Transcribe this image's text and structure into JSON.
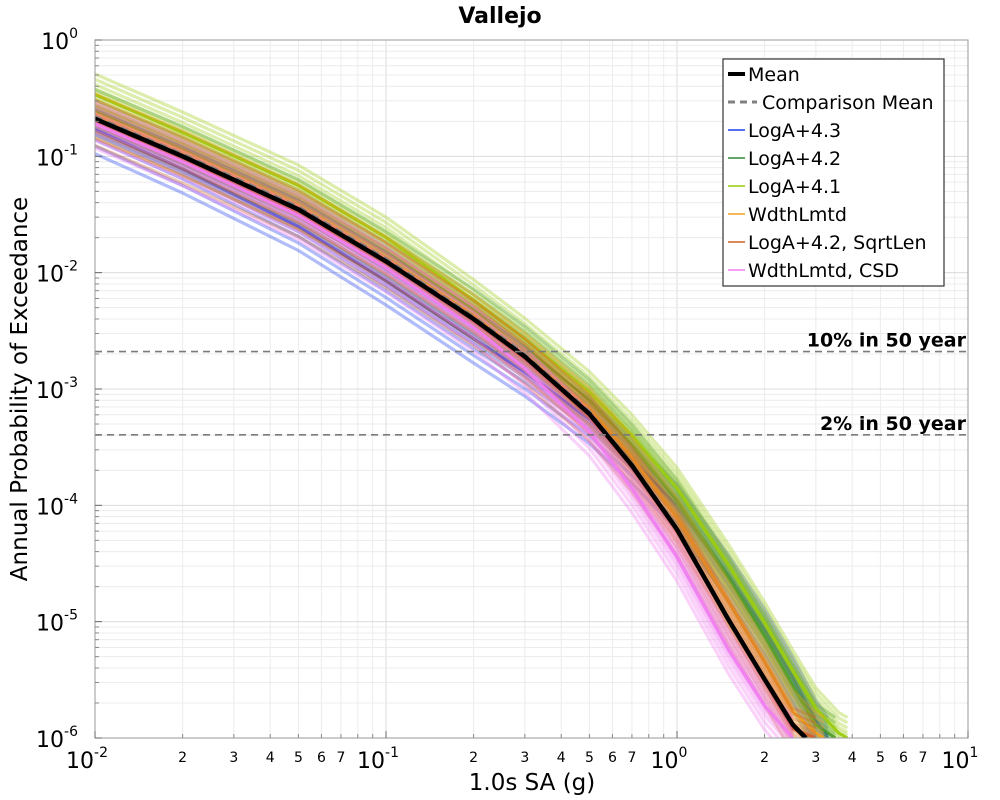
{
  "chart_data": {
    "type": "line",
    "title": "Vallejo",
    "xlabel": "1.0s SA (g)",
    "ylabel": "Annual Probability of Exceedance",
    "xscale": "log",
    "yscale": "log",
    "xlim": [
      0.01,
      10
    ],
    "ylim": [
      1e-06,
      1
    ],
    "grid": true,
    "legend_position": "top-right",
    "x_major_tick_labels": [
      {
        "base": "10",
        "exp": "-2"
      },
      {
        "base": "10",
        "exp": "-1"
      },
      {
        "base": "10",
        "exp": "0"
      },
      {
        "base": "10",
        "exp": "1"
      }
    ],
    "x_minor_tick_labels": [
      "2",
      "3",
      "4",
      "5",
      "6",
      "7"
    ],
    "y_tick_labels": [
      {
        "base": "10",
        "exp": "0"
      },
      {
        "base": "10",
        "exp": "-1"
      },
      {
        "base": "10",
        "exp": "-2"
      },
      {
        "base": "10",
        "exp": "-3"
      },
      {
        "base": "10",
        "exp": "-4"
      },
      {
        "base": "10",
        "exp": "-5"
      },
      {
        "base": "10",
        "exp": "-6"
      }
    ],
    "reference_lines": [
      {
        "label": "10% in 50 year",
        "y": 0.0021
      },
      {
        "label": "2% in 50 year",
        "y": 0.000404
      }
    ],
    "series": [
      {
        "name": "Mean",
        "color": "#000000",
        "style": "solid-thick",
        "x": [
          0.01,
          0.02,
          0.05,
          0.1,
          0.2,
          0.3,
          0.5,
          0.7,
          1.0,
          1.5,
          2.0,
          2.5,
          2.77
        ],
        "y": [
          0.21,
          0.1,
          0.035,
          0.0125,
          0.004,
          0.0019,
          0.00061,
          0.00022,
          6.2e-05,
          1.05e-05,
          3.2e-06,
          1.3e-06,
          1e-06
        ]
      },
      {
        "name": "Comparison Mean",
        "color": "#808080",
        "style": "dashed",
        "x": [
          0.01,
          0.02,
          0.05,
          0.1,
          0.2,
          0.3,
          0.5,
          0.7,
          1.0,
          1.5,
          2.0,
          2.5,
          2.8
        ],
        "y": [
          0.22,
          0.105,
          0.037,
          0.0132,
          0.0042,
          0.002,
          0.00064,
          0.00023,
          6.5e-05,
          1.1e-05,
          3.3e-06,
          1.3e-06,
          1e-06
        ]
      },
      {
        "name": "LogA+4.3",
        "color": "#1f3ff0",
        "style": "band",
        "x": [
          0.01,
          0.02,
          0.05,
          0.1,
          0.2,
          0.3,
          0.5,
          0.7,
          1.0,
          1.5,
          2.0,
          2.5,
          3.0,
          3.3
        ],
        "y": [
          0.17,
          0.078,
          0.025,
          0.0085,
          0.0027,
          0.0014,
          0.00055,
          0.00025,
          0.0001,
          2.5e-05,
          8.5e-06,
          3.3e-06,
          1.4e-06,
          1e-06
        ]
      },
      {
        "name": "LogA+4.2",
        "color": "#2e8b3a",
        "style": "band",
        "x": [
          0.01,
          0.02,
          0.05,
          0.1,
          0.2,
          0.3,
          0.5,
          0.7,
          1.0,
          1.5,
          2.0,
          2.5,
          3.0,
          3.5
        ],
        "y": [
          0.25,
          0.12,
          0.042,
          0.015,
          0.0048,
          0.0023,
          0.0008,
          0.00033,
          0.00011,
          2.4e-05,
          7.5e-06,
          2.8e-06,
          1.3e-06,
          1e-06
        ]
      },
      {
        "name": "LogA+4.1",
        "color": "#9ccc10",
        "style": "band",
        "x": [
          0.01,
          0.02,
          0.05,
          0.1,
          0.2,
          0.3,
          0.5,
          0.7,
          1.0,
          1.5,
          2.0,
          2.5,
          3.0,
          3.6,
          3.85
        ],
        "y": [
          0.34,
          0.16,
          0.056,
          0.02,
          0.0058,
          0.0027,
          0.00094,
          0.0004,
          0.00014,
          3.1e-05,
          9.8e-06,
          3.8e-06,
          1.8e-06,
          1.1e-06,
          1e-06
        ]
      },
      {
        "name": "WdthLmtd",
        "color": "#f0a020",
        "style": "band",
        "x": [
          0.01,
          0.02,
          0.05,
          0.1,
          0.2,
          0.3,
          0.5,
          0.7,
          1.0,
          1.5,
          2.0,
          2.5,
          3.0,
          3.2
        ],
        "y": [
          0.23,
          0.11,
          0.038,
          0.0135,
          0.0043,
          0.002,
          0.00068,
          0.00026,
          7.8e-05,
          1.5e-05,
          4.5e-06,
          1.7e-06,
          1.1e-06,
          1e-06
        ]
      },
      {
        "name": "LogA+4.2, SqrtLen",
        "color": "#d0602a",
        "style": "band",
        "x": [
          0.01,
          0.02,
          0.05,
          0.1,
          0.2,
          0.3,
          0.5,
          0.7,
          1.0,
          1.5,
          2.0,
          2.5,
          3.0
        ],
        "y": [
          0.2,
          0.095,
          0.033,
          0.012,
          0.0038,
          0.0018,
          0.00058,
          0.00021,
          6e-05,
          1.05e-05,
          3.1e-06,
          1.2e-06,
          1e-06
        ]
      },
      {
        "name": "WdthLmtd, CSD",
        "color": "#f07ef0",
        "style": "band",
        "x": [
          0.01,
          0.02,
          0.05,
          0.1,
          0.2,
          0.3,
          0.5,
          0.7,
          1.0,
          1.5,
          2.0,
          2.5
        ],
        "y": [
          0.19,
          0.09,
          0.031,
          0.011,
          0.0034,
          0.0015,
          0.00043,
          0.00014,
          3.6e-05,
          5.8e-06,
          1.9e-06,
          1e-06
        ]
      }
    ]
  }
}
